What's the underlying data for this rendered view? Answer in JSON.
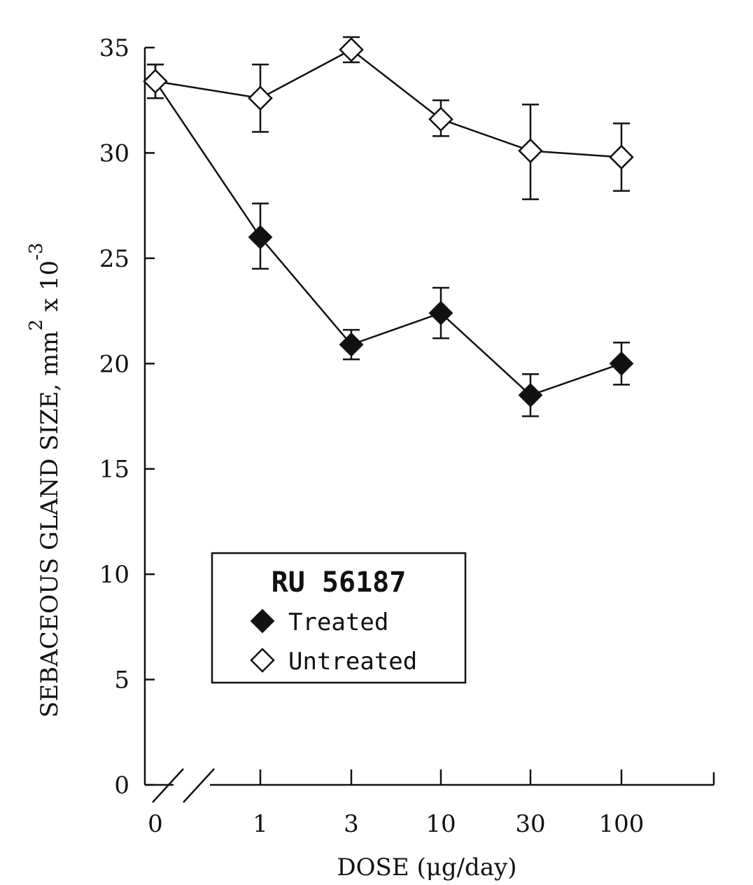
{
  "chart_data": {
    "type": "line",
    "title": "",
    "xlabel": "DOSE (μg/day)",
    "ylabel": "SEBACEOUS GLAND SIZE,  mm",
    "ylabel_unit_exponent": "2",
    "ylabel_suffix": " x 10",
    "ylabel_suffix_exponent": "-3",
    "x_scale": "log (broken axis at 0)",
    "categories": [
      "0",
      "1",
      "3",
      "10",
      "30",
      "100"
    ],
    "x": [
      0,
      1,
      3,
      10,
      30,
      100
    ],
    "ylim": [
      0,
      35
    ],
    "y_ticks": [
      "0",
      "5",
      "10",
      "15",
      "20",
      "25",
      "30",
      "35"
    ],
    "grid": false,
    "legend": {
      "title": "RU 56187",
      "position": "lower-left",
      "entries": [
        "Treated",
        "Untreated"
      ]
    },
    "series": [
      {
        "name": "Treated",
        "marker": "filled-diamond",
        "values": [
          33.4,
          26.0,
          20.9,
          22.4,
          18.5,
          20.0
        ],
        "err_low": [
          0.8,
          1.5,
          0.7,
          1.2,
          1.0,
          1.0
        ],
        "err_high": [
          0.8,
          1.6,
          0.7,
          1.2,
          1.0,
          1.0
        ]
      },
      {
        "name": "Untreated",
        "marker": "open-diamond",
        "values": [
          33.4,
          32.6,
          34.9,
          31.6,
          30.1,
          29.8
        ],
        "err_low": [
          0.8,
          1.6,
          0.6,
          0.8,
          2.3,
          1.6
        ],
        "err_high": [
          0.8,
          1.6,
          0.6,
          0.9,
          2.2,
          1.6
        ]
      }
    ]
  }
}
